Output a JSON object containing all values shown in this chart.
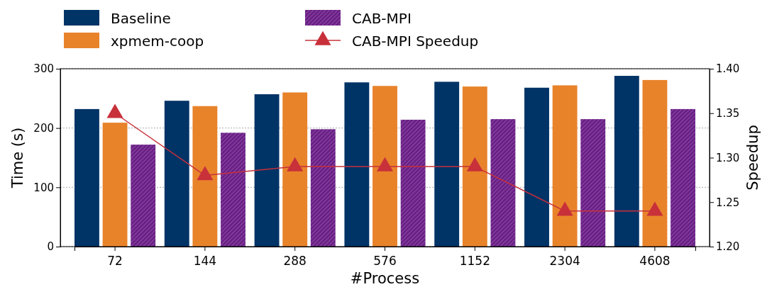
{
  "chart_data": {
    "type": "bar",
    "xlabel": "#Process",
    "ylabel": "Time (s)",
    "y2label": "Speedup",
    "categories": [
      "72",
      "144",
      "288",
      "576",
      "1152",
      "2304",
      "4608"
    ],
    "series": [
      {
        "name": "Baseline",
        "color": "#003366",
        "values": [
          232,
          246,
          257,
          277,
          278,
          268,
          288
        ]
      },
      {
        "name": "xpmem-coop",
        "color": "#e8832a",
        "values": [
          209,
          237,
          260,
          271,
          270,
          272,
          281
        ]
      },
      {
        "name": "CAB-MPI",
        "color": "#6b1f87",
        "values": [
          172,
          192,
          198,
          214,
          215,
          215,
          232
        ]
      },
      {
        "name": "CAB-MPI Speedup",
        "type": "line",
        "axis": "y2",
        "color": "#c8303a",
        "marker": "triangle",
        "values": [
          1.35,
          1.28,
          1.29,
          1.29,
          1.29,
          1.24,
          1.24
        ]
      }
    ],
    "ylim": [
      0,
      300
    ],
    "yticks": [
      0,
      100,
      200,
      300
    ],
    "y2lim": [
      1.2,
      1.4
    ],
    "y2ticks": [
      {
        "value": 1.2,
        "label": "1.20"
      },
      {
        "value": 1.25,
        "label": "1.25"
      },
      {
        "value": 1.3,
        "label": "1.30"
      },
      {
        "value": 1.35,
        "label": "1.35"
      },
      {
        "value": 1.4,
        "label": "1.40"
      }
    ],
    "grid": "y",
    "legend": "top left"
  }
}
